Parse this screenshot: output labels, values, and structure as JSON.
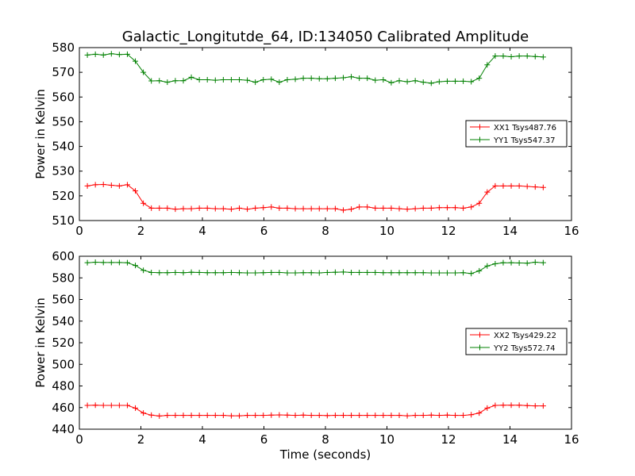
{
  "title": "Galactic_Longitutde_64, ID:134050 Calibrated Amplitude",
  "colors": {
    "red": "#ff0000",
    "green": "#008000",
    "axis": "#000000"
  },
  "chart_data": [
    {
      "type": "line",
      "ylabel": "Power in Kelvin",
      "xlabel": "",
      "xlim": [
        0,
        16
      ],
      "ylim": [
        510,
        580
      ],
      "xticks": [
        0,
        2,
        4,
        6,
        8,
        10,
        12,
        14,
        16
      ],
      "yticks": [
        510,
        520,
        530,
        540,
        550,
        560,
        570,
        580
      ],
      "grid": false,
      "legend_position": "center-right",
      "x": [
        0.26,
        0.52,
        0.78,
        1.04,
        1.3,
        1.56,
        1.82,
        2.08,
        2.34,
        2.6,
        2.86,
        3.12,
        3.38,
        3.64,
        3.9,
        4.16,
        4.42,
        4.68,
        4.94,
        5.2,
        5.46,
        5.72,
        5.98,
        6.24,
        6.5,
        6.76,
        7.02,
        7.28,
        7.54,
        7.8,
        8.06,
        8.32,
        8.58,
        8.84,
        9.1,
        9.36,
        9.62,
        9.88,
        10.14,
        10.4,
        10.66,
        10.92,
        11.18,
        11.44,
        11.7,
        11.96,
        12.22,
        12.48,
        12.74,
        13.0,
        13.26,
        13.52,
        13.78,
        14.04,
        14.3,
        14.56,
        14.82,
        15.08
      ],
      "series": [
        {
          "name": "XX1 Tsys487.76",
          "color": "#ff0000",
          "values": [
            524.0,
            524.5,
            524.6,
            524.3,
            524.0,
            524.5,
            522.0,
            517.0,
            515.0,
            515.0,
            515.0,
            514.6,
            514.8,
            514.8,
            515.0,
            515.0,
            514.8,
            514.8,
            514.6,
            515.0,
            514.6,
            515.0,
            515.2,
            515.5,
            515.0,
            515.0,
            514.8,
            514.8,
            514.8,
            514.8,
            514.8,
            514.8,
            514.2,
            514.6,
            515.5,
            515.5,
            515.0,
            515.0,
            515.0,
            514.8,
            514.6,
            514.8,
            515.0,
            515.0,
            515.2,
            515.2,
            515.2,
            515.0,
            515.5,
            517.0,
            521.5,
            524.0,
            524.0,
            524.0,
            524.0,
            523.8,
            523.6,
            523.4
          ]
        },
        {
          "name": "YY1 Tsys547.37",
          "color": "#008000",
          "values": [
            577.0,
            577.3,
            577.0,
            577.5,
            577.2,
            577.3,
            574.5,
            570.0,
            566.5,
            566.6,
            566.0,
            566.6,
            566.6,
            568.0,
            567.0,
            567.0,
            566.8,
            567.0,
            567.0,
            567.0,
            566.8,
            566.0,
            567.0,
            567.2,
            566.0,
            567.0,
            567.2,
            567.6,
            567.6,
            567.4,
            567.4,
            567.6,
            567.8,
            568.2,
            567.6,
            567.6,
            566.8,
            567.0,
            565.8,
            566.6,
            566.2,
            566.6,
            566.0,
            565.6,
            566.2,
            566.4,
            566.4,
            566.4,
            566.2,
            567.6,
            573.0,
            576.6,
            576.6,
            576.3,
            576.6,
            576.6,
            576.4,
            576.2
          ]
        }
      ]
    },
    {
      "type": "line",
      "ylabel": "Power in Kelvin",
      "xlabel": "Time (seconds)",
      "xlim": [
        0,
        16
      ],
      "ylim": [
        440,
        600
      ],
      "xticks": [
        0,
        2,
        4,
        6,
        8,
        10,
        12,
        14,
        16
      ],
      "yticks": [
        440,
        460,
        480,
        500,
        520,
        540,
        560,
        580,
        600
      ],
      "grid": false,
      "legend_position": "center-right",
      "x": [
        0.26,
        0.52,
        0.78,
        1.04,
        1.3,
        1.56,
        1.82,
        2.08,
        2.34,
        2.6,
        2.86,
        3.12,
        3.38,
        3.64,
        3.9,
        4.16,
        4.42,
        4.68,
        4.94,
        5.2,
        5.46,
        5.72,
        5.98,
        6.24,
        6.5,
        6.76,
        7.02,
        7.28,
        7.54,
        7.8,
        8.06,
        8.32,
        8.58,
        8.84,
        9.1,
        9.36,
        9.62,
        9.88,
        10.14,
        10.4,
        10.66,
        10.92,
        11.18,
        11.44,
        11.7,
        11.96,
        12.22,
        12.48,
        12.74,
        13.0,
        13.26,
        13.52,
        13.78,
        14.04,
        14.3,
        14.56,
        14.82,
        15.08
      ],
      "series": [
        {
          "name": "XX2 Tsys429.22",
          "color": "#ff0000",
          "values": [
            462.0,
            462.2,
            462.0,
            462.0,
            462.0,
            462.0,
            459.5,
            455.0,
            453.0,
            452.2,
            452.8,
            452.8,
            452.8,
            452.8,
            452.8,
            452.8,
            452.8,
            452.8,
            452.4,
            452.4,
            452.8,
            452.8,
            452.8,
            453.0,
            453.2,
            453.0,
            452.8,
            453.0,
            452.8,
            452.8,
            452.6,
            452.8,
            452.8,
            452.8,
            452.8,
            452.8,
            452.8,
            452.8,
            452.8,
            452.8,
            452.4,
            452.8,
            452.8,
            453.0,
            452.8,
            453.0,
            452.8,
            452.8,
            453.4,
            455.0,
            459.5,
            462.0,
            462.2,
            462.2,
            462.2,
            461.8,
            461.6,
            461.6
          ]
        },
        {
          "name": "YY2 Tsys572.74",
          "color": "#008000",
          "values": [
            594.0,
            594.5,
            594.2,
            594.2,
            594.2,
            594.0,
            591.5,
            587.0,
            585.0,
            584.8,
            584.8,
            585.0,
            584.8,
            585.2,
            585.0,
            584.8,
            584.8,
            584.8,
            585.0,
            584.8,
            584.6,
            584.6,
            584.8,
            585.0,
            585.0,
            584.6,
            584.6,
            584.8,
            584.8,
            584.6,
            585.0,
            585.2,
            585.4,
            585.0,
            585.0,
            585.0,
            585.0,
            584.8,
            584.8,
            584.8,
            584.8,
            584.8,
            584.8,
            584.6,
            584.6,
            584.6,
            584.6,
            584.8,
            584.0,
            586.5,
            591.0,
            593.0,
            594.0,
            594.0,
            593.8,
            593.6,
            594.5,
            594.0
          ]
        }
      ]
    }
  ]
}
